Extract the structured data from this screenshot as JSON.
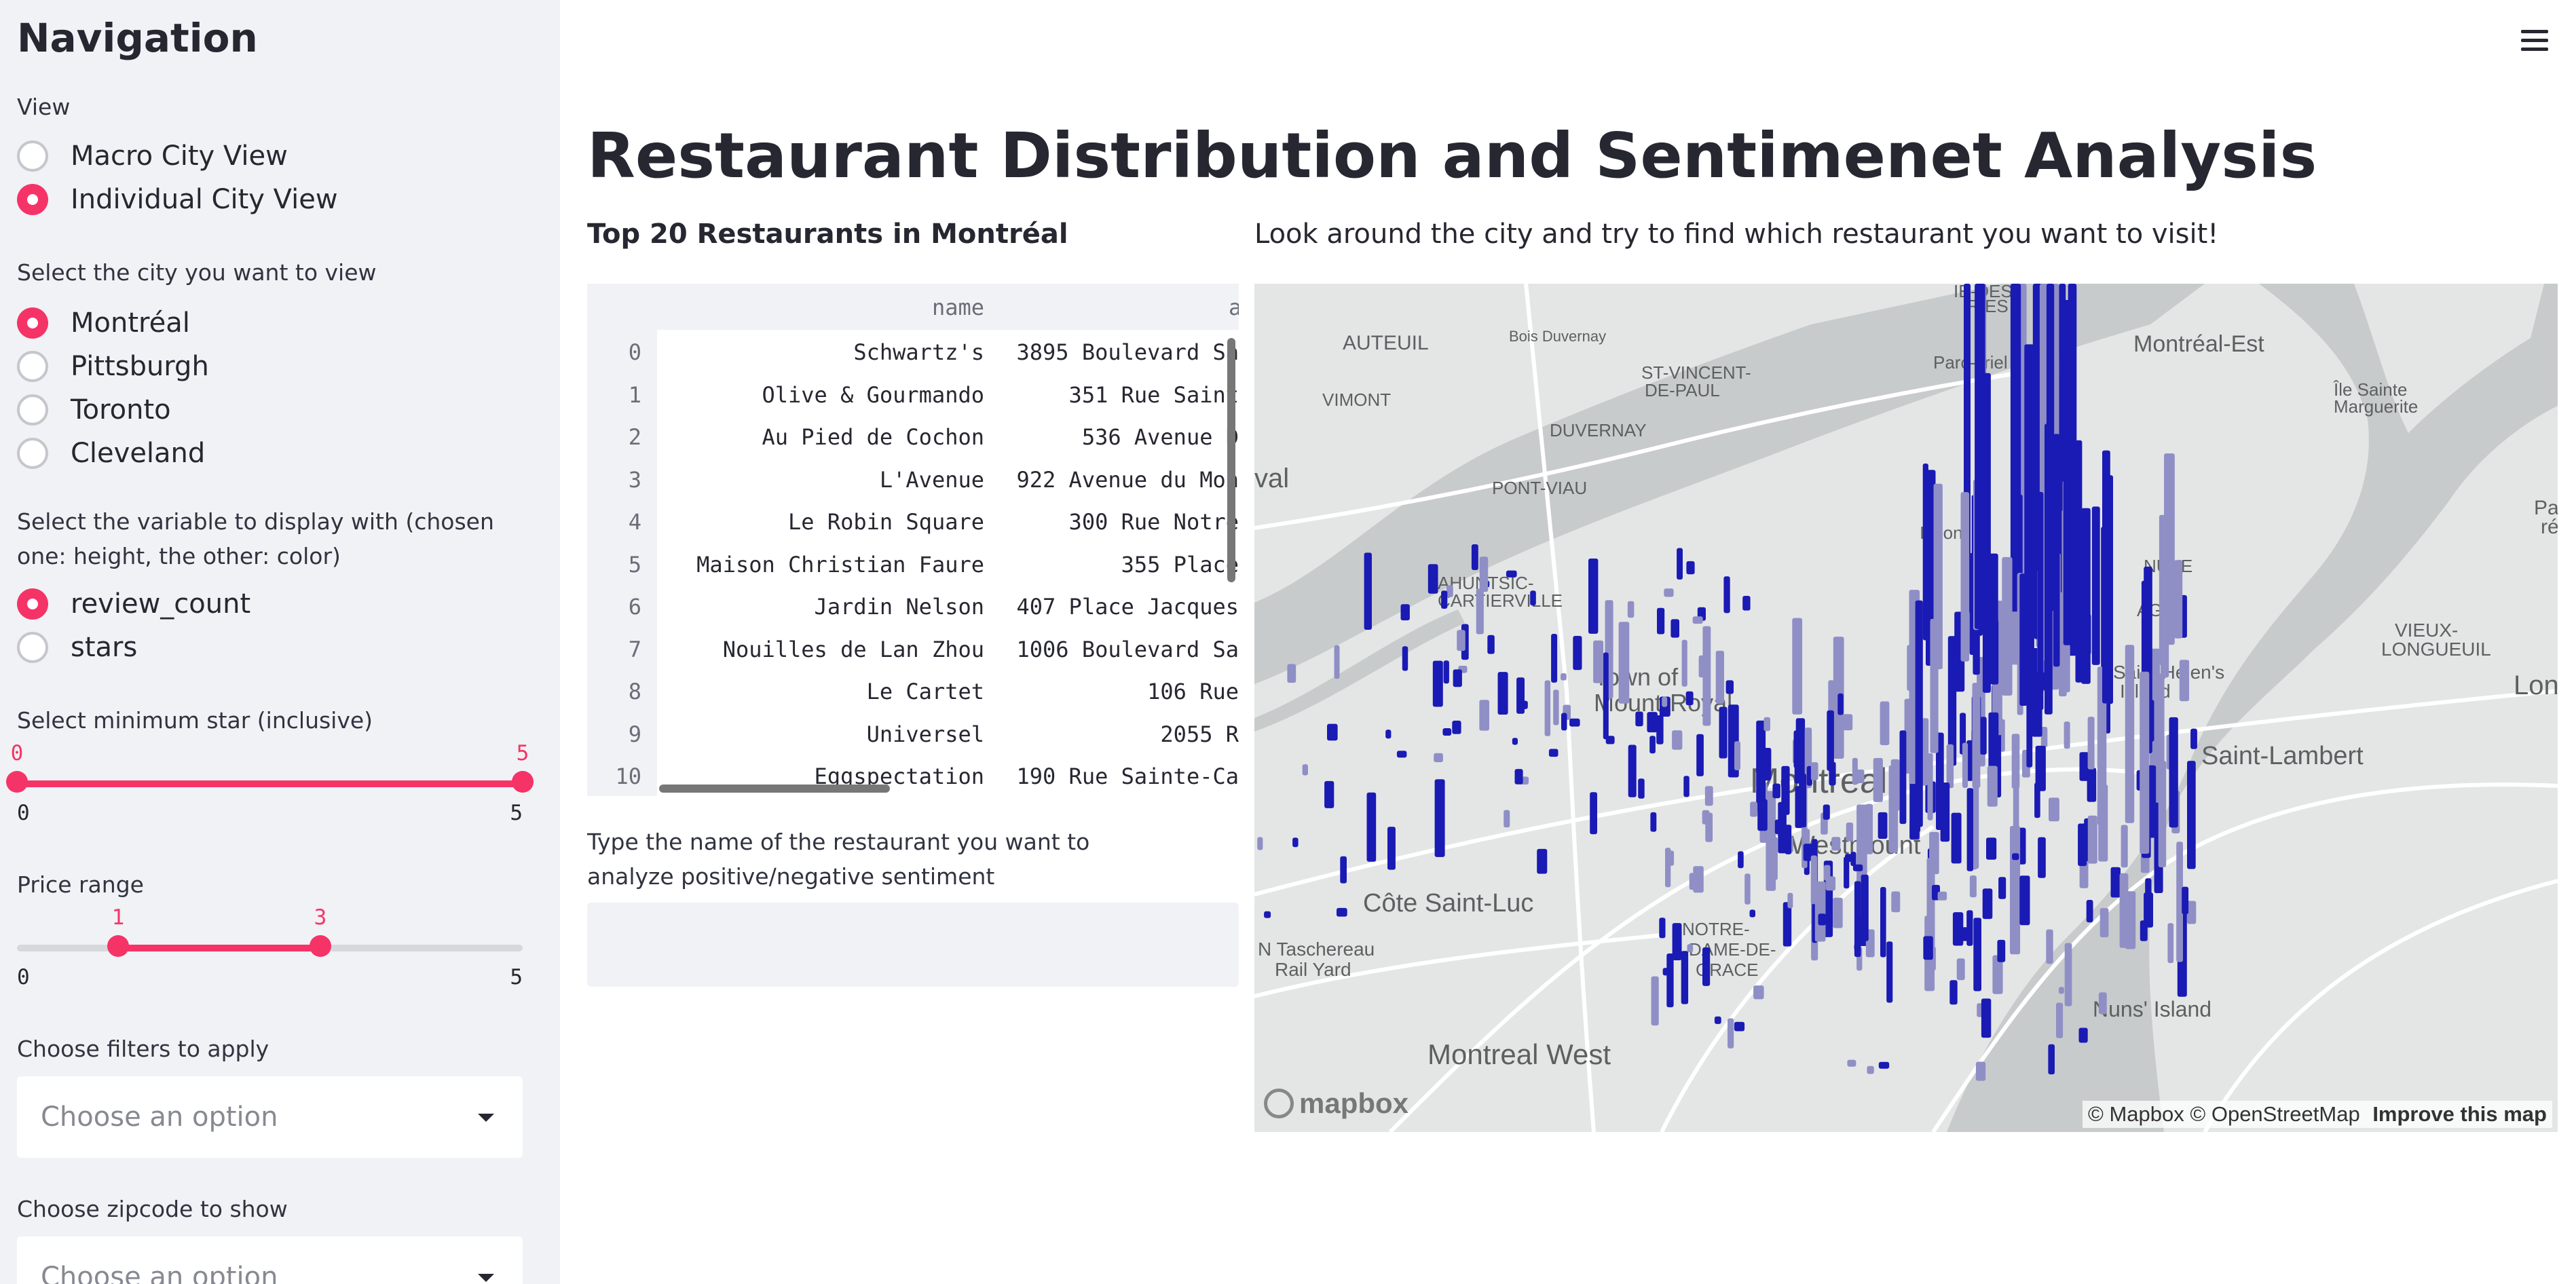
{
  "sidebar": {
    "title": "Navigation",
    "view_label": "View",
    "views": [
      {
        "label": "Macro City View",
        "selected": false
      },
      {
        "label": "Individual City View",
        "selected": true
      }
    ],
    "city_label": "Select the city you want to view",
    "cities": [
      {
        "label": "Montréal",
        "selected": true
      },
      {
        "label": "Pittsburgh",
        "selected": false
      },
      {
        "label": "Toronto",
        "selected": false
      },
      {
        "label": "Cleveland",
        "selected": false
      }
    ],
    "variable_label": "Select the variable to display with (chosen one: height, the other: color)",
    "variables": [
      {
        "label": "review_count",
        "selected": true
      },
      {
        "label": "stars",
        "selected": false
      }
    ],
    "min_star_slider": {
      "label": "Select minimum star (inclusive)",
      "low": "0",
      "high": "5",
      "min": "0",
      "max": "5",
      "low_frac": 0,
      "high_frac": 1
    },
    "price_slider": {
      "label": "Price range",
      "low": "1",
      "high": "3",
      "min": "0",
      "max": "5",
      "low_frac": 0.2,
      "high_frac": 0.6
    },
    "filters": {
      "label": "Choose filters to apply",
      "placeholder": "Choose an option"
    },
    "zipcode": {
      "label": "Choose zipcode to show",
      "placeholder": "Choose an option"
    }
  },
  "main": {
    "title": "Restaurant Distribution and Sentimenet Analysis",
    "table_heading": "Top 20 Restaurants in Montréal",
    "map_heading": "Look around the city and try to find which restaurant you want to visit!",
    "table": {
      "columns": [
        "name",
        "a"
      ],
      "rows": [
        {
          "idx": "0",
          "name": "Schwartz's",
          "addr": "3895 Boulevard Sa"
        },
        {
          "idx": "1",
          "name": "Olive & Gourmando",
          "addr": "351 Rue Saint"
        },
        {
          "idx": "2",
          "name": "Au Pied de Cochon",
          "addr": "536 Avenue D"
        },
        {
          "idx": "3",
          "name": "L'Avenue",
          "addr": "922 Avenue du Mon"
        },
        {
          "idx": "4",
          "name": "Le Robin Square",
          "addr": "300 Rue Notre"
        },
        {
          "idx": "5",
          "name": "Maison Christian Faure",
          "addr": "355 Place"
        },
        {
          "idx": "6",
          "name": "Jardin Nelson",
          "addr": "407 Place Jacques"
        },
        {
          "idx": "7",
          "name": "Nouilles de Lan Zhou",
          "addr": "1006 Boulevard Sa"
        },
        {
          "idx": "8",
          "name": "Le Cartet",
          "addr": "106 Rue"
        },
        {
          "idx": "9",
          "name": "Universel",
          "addr": "2055 R"
        },
        {
          "idx": "10",
          "name": "Eggspectation",
          "addr": "190 Rue Sainte-Ca"
        }
      ]
    },
    "sentiment_prompt": "Type the name of the restaurant you want to analyze positive/negative sentiment",
    "sentiment_value": ""
  },
  "map": {
    "places": [
      "AUTEUIL",
      "Bois Duvernay",
      "VIMONT",
      "DUVERNAY",
      "PONT-VIAU",
      "ST-VINCENT-",
      "DE-PAUL",
      "Montréal-Est",
      "Île Sainte",
      "Marguerite",
      "val",
      "Parc",
      "ré",
      "AHUNTSIC-",
      "CARTIERVILLE",
      "Town of",
      "Mount-Royal",
      "Montreal",
      "Westmount",
      "Côte Saint-Luc",
      "N Taschereau",
      "Rail Yard",
      "NOTRE-",
      "DAME-DE-",
      "GRACE",
      "Montreal West",
      "Saint Helen's",
      "Island",
      "VIEUX-",
      "LONGUEUIL",
      "Saint-Lambert",
      "Nuns' Island",
      "Lon",
      "IE-DES-",
      "RIES",
      "Parc-n",
      "riel",
      "NUVE",
      "AGA",
      "Isgon"
    ],
    "attribution": "© Mapbox © OpenStreetMap",
    "improve": "Improve this map",
    "logo": "mapbox",
    "colors": {
      "bar_dark": "#1a1ab4",
      "bar_light": "#8f8fc6",
      "water": "#c8cbcc",
      "land": "#e4e6e6"
    }
  }
}
